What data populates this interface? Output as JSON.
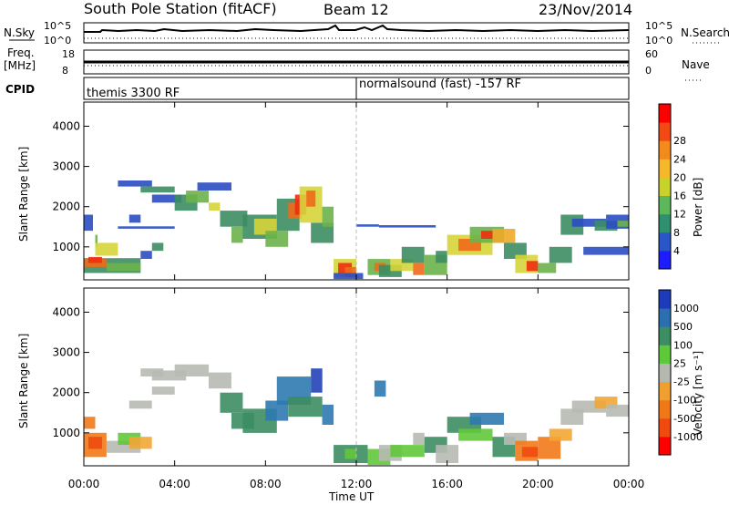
{
  "header": {
    "title": "South Pole Station (fitACF)",
    "beam": "Beam 12",
    "date": "23/Nov/2014"
  },
  "strips": {
    "nsky_label": "N.Sky",
    "nsky_ticks": [
      "10^5",
      "10^0"
    ],
    "nsearch_label": "N.Search",
    "nsearch_ticks": [
      "10^5",
      "10^0"
    ],
    "freq_label": "Freq.",
    "freq_unit": "[MHz]",
    "freq_ticks": [
      "18",
      "8"
    ],
    "nave_label": "Nave",
    "nave_ticks": [
      "60",
      "0"
    ],
    "cpid_label": "CPID",
    "cpid_segments": [
      {
        "label": "themis 3300 RF"
      },
      {
        "label": "normalsound (fast) -157 RF"
      }
    ]
  },
  "chart_data": [
    {
      "type": "heatmap",
      "panel": "power",
      "title": "",
      "xlabel": "",
      "ylabel": "Slant Range [km]",
      "xlim": [
        "00:00",
        "24:00"
      ],
      "ylim": [
        180,
        4600
      ],
      "x_ticks": [
        "00:00",
        "04:00",
        "08:00",
        "12:00",
        "16:00",
        "20:00",
        "00:00"
      ],
      "y_ticks": [
        1000,
        2000,
        3000,
        4000
      ],
      "colorbar": {
        "label": "Power [dB]",
        "ticks": [
          "4",
          "8",
          "12",
          "16",
          "20",
          "24",
          "28"
        ],
        "colors": [
          "#1c1cff",
          "#2a56c8",
          "#2f8f6f",
          "#5cb85a",
          "#c8d22a",
          "#f5b82c",
          "#f28a1c",
          "#f24a14",
          "#ff0000"
        ]
      },
      "colormap": {
        "0": "#2a4dc2",
        "1": "#3c8d62",
        "2": "#6bb24a",
        "3": "#d6d43a",
        "4": "#f0a828",
        "5": "#f06a18",
        "6": "#f02e10",
        "7": "#ff1a0a"
      },
      "cells": [
        [
          "00:30",
          "00:36",
          1000,
          1300,
          2
        ],
        [
          "00:00",
          "02:30",
          350,
          720,
          1
        ],
        [
          "00:00",
          "01:00",
          500,
          700,
          5
        ],
        [
          "00:12",
          "00:48",
          600,
          750,
          6
        ],
        [
          "00:30",
          "01:30",
          780,
          1100,
          3
        ],
        [
          "01:00",
          "02:30",
          400,
          600,
          2
        ],
        [
          "00:00",
          "00:24",
          1400,
          1800,
          0
        ],
        [
          "02:00",
          "02:30",
          1600,
          1800,
          0
        ],
        [
          "01:30",
          "04:00",
          1450,
          1510,
          0
        ],
        [
          "01:30",
          "03:00",
          2500,
          2650,
          0
        ],
        [
          "02:30",
          "04:00",
          2350,
          2500,
          1
        ],
        [
          "03:00",
          "04:18",
          2100,
          2300,
          0
        ],
        [
          "04:00",
          "05:00",
          1900,
          2300,
          1
        ],
        [
          "04:30",
          "05:30",
          2100,
          2400,
          2
        ],
        [
          "05:00",
          "06:30",
          2400,
          2600,
          0
        ],
        [
          "05:30",
          "06:00",
          1900,
          2100,
          3
        ],
        [
          "06:00",
          "07:12",
          1500,
          1900,
          1
        ],
        [
          "06:30",
          "07:00",
          1100,
          1500,
          2
        ],
        [
          "07:00",
          "08:30",
          1200,
          1800,
          1
        ],
        [
          "07:30",
          "08:30",
          1300,
          1700,
          3
        ],
        [
          "08:00",
          "09:00",
          1000,
          1400,
          2
        ],
        [
          "08:30",
          "09:30",
          1400,
          2200,
          1
        ],
        [
          "09:00",
          "09:36",
          1700,
          2100,
          5
        ],
        [
          "09:18",
          "09:48",
          1800,
          2300,
          6
        ],
        [
          "09:30",
          "10:30",
          1600,
          2500,
          3
        ],
        [
          "09:48",
          "10:12",
          2000,
          2400,
          5
        ],
        [
          "10:00",
          "11:00",
          1100,
          1600,
          1
        ],
        [
          "10:30",
          "11:00",
          1500,
          2000,
          2
        ],
        [
          "11:00",
          "12:00",
          250,
          700,
          3
        ],
        [
          "11:12",
          "11:48",
          350,
          600,
          6
        ],
        [
          "11:30",
          "12:00",
          250,
          500,
          5
        ],
        [
          "11:00",
          "12:18",
          200,
          350,
          0
        ],
        [
          "12:30",
          "13:30",
          300,
          700,
          2
        ],
        [
          "12:48",
          "13:18",
          400,
          600,
          5
        ],
        [
          "13:00",
          "14:00",
          250,
          550,
          1
        ],
        [
          "13:30",
          "14:30",
          400,
          700,
          3
        ],
        [
          "14:00",
          "15:00",
          600,
          1000,
          1
        ],
        [
          "14:30",
          "15:00",
          300,
          600,
          5
        ],
        [
          "15:00",
          "16:00",
          300,
          800,
          2
        ],
        [
          "15:30",
          "16:00",
          600,
          900,
          1
        ],
        [
          "16:00",
          "18:00",
          800,
          1300,
          3
        ],
        [
          "16:30",
          "17:30",
          900,
          1200,
          5
        ],
        [
          "17:00",
          "18:30",
          1100,
          1500,
          2
        ],
        [
          "17:30",
          "18:00",
          1200,
          1400,
          6
        ],
        [
          "18:00",
          "19:00",
          1100,
          1450,
          4
        ],
        [
          "18:30",
          "19:30",
          700,
          1100,
          1
        ],
        [
          "19:00",
          "20:00",
          350,
          800,
          3
        ],
        [
          "19:30",
          "20:00",
          400,
          650,
          6
        ],
        [
          "20:00",
          "20:48",
          350,
          600,
          2
        ],
        [
          "20:30",
          "21:30",
          600,
          1000,
          1
        ],
        [
          "21:00",
          "22:00",
          1300,
          1800,
          1
        ],
        [
          "21:30",
          "23:00",
          1500,
          1700,
          0
        ],
        [
          "22:30",
          "23:30",
          1400,
          1650,
          1
        ],
        [
          "23:00",
          "24:00",
          1450,
          1800,
          0
        ],
        [
          "23:30",
          "24:00",
          1500,
          1650,
          2
        ],
        [
          "12:00",
          "13:00",
          1500,
          1560,
          0
        ],
        [
          "13:00",
          "15:30",
          1480,
          1540,
          0
        ],
        [
          "22:00",
          "24:00",
          800,
          1000,
          0
        ],
        [
          "02:30",
          "03:00",
          700,
          900,
          0
        ],
        [
          "03:00",
          "03:30",
          900,
          1100,
          1
        ]
      ]
    },
    {
      "type": "heatmap",
      "panel": "velocity",
      "title": "",
      "xlabel": "Time UT",
      "ylabel": "Slant Range [km]",
      "xlim": [
        "00:00",
        "24:00"
      ],
      "ylim": [
        180,
        4600
      ],
      "x_ticks": [
        "00:00",
        "04:00",
        "08:00",
        "12:00",
        "16:00",
        "20:00",
        "00:00"
      ],
      "y_ticks": [
        1000,
        2000,
        3000,
        4000
      ],
      "colorbar": {
        "label": "Velocity [m s⁻¹]",
        "ticks": [
          "1000",
          "500",
          "100",
          "25",
          "-25",
          "-100",
          "-500",
          "-1000"
        ],
        "colors": [
          "#1c3cbc",
          "#2b6fb0",
          "#3c8d62",
          "#5cc83a",
          "#b4b8b0",
          "#f0a030",
          "#f07818",
          "#f04a10",
          "#ff0000"
        ]
      },
      "colormap": {
        "0": "#2342b8",
        "1": "#2e7ab0",
        "2": "#3c8d62",
        "3": "#60c83a",
        "4": "#b7bab2",
        "5": "#f2a634",
        "6": "#f27a1a",
        "7": "#f04a10"
      },
      "cells": [
        [
          "00:00",
          "01:00",
          400,
          1000,
          6
        ],
        [
          "00:12",
          "00:48",
          600,
          900,
          7
        ],
        [
          "00:00",
          "00:30",
          1100,
          1400,
          6
        ],
        [
          "01:00",
          "02:30",
          500,
          800,
          4
        ],
        [
          "01:30",
          "02:30",
          700,
          1000,
          3
        ],
        [
          "02:30",
          "03:30",
          2400,
          2600,
          4
        ],
        [
          "03:00",
          "04:30",
          2300,
          2550,
          4
        ],
        [
          "04:00",
          "05:30",
          2400,
          2700,
          4
        ],
        [
          "05:30",
          "06:30",
          2100,
          2500,
          4
        ],
        [
          "06:00",
          "07:00",
          1500,
          2000,
          2
        ],
        [
          "06:30",
          "07:30",
          1100,
          1500,
          2
        ],
        [
          "07:00",
          "08:30",
          1000,
          1600,
          2
        ],
        [
          "08:00",
          "09:00",
          1300,
          1800,
          1
        ],
        [
          "08:30",
          "10:00",
          1700,
          2400,
          1
        ],
        [
          "09:00",
          "10:30",
          1400,
          1900,
          2
        ],
        [
          "10:00",
          "10:30",
          2000,
          2600,
          0
        ],
        [
          "10:30",
          "11:00",
          1200,
          1700,
          1
        ],
        [
          "11:00",
          "12:30",
          250,
          700,
          2
        ],
        [
          "11:30",
          "12:00",
          350,
          600,
          3
        ],
        [
          "12:30",
          "13:30",
          200,
          600,
          3
        ],
        [
          "12:48",
          "13:18",
          1900,
          2300,
          1
        ],
        [
          "13:00",
          "14:00",
          300,
          700,
          4
        ],
        [
          "13:30",
          "15:00",
          400,
          700,
          3
        ],
        [
          "14:30",
          "15:00",
          700,
          1000,
          4
        ],
        [
          "15:00",
          "16:00",
          500,
          900,
          2
        ],
        [
          "15:30",
          "16:30",
          250,
          700,
          4
        ],
        [
          "16:00",
          "17:30",
          1000,
          1400,
          2
        ],
        [
          "16:30",
          "18:00",
          800,
          1100,
          3
        ],
        [
          "17:00",
          "18:30",
          1200,
          1500,
          1
        ],
        [
          "18:00",
          "19:00",
          400,
          900,
          2
        ],
        [
          "18:30",
          "19:30",
          700,
          1000,
          4
        ],
        [
          "19:00",
          "20:00",
          300,
          800,
          6
        ],
        [
          "19:18",
          "20:00",
          400,
          650,
          7
        ],
        [
          "20:00",
          "21:00",
          350,
          900,
          6
        ],
        [
          "20:30",
          "21:30",
          800,
          1100,
          5
        ],
        [
          "21:00",
          "22:00",
          1200,
          1600,
          4
        ],
        [
          "21:30",
          "23:00",
          1500,
          1800,
          4
        ],
        [
          "22:30",
          "23:30",
          1600,
          1900,
          5
        ],
        [
          "23:00",
          "24:00",
          1400,
          1700,
          4
        ],
        [
          "02:00",
          "03:00",
          1600,
          1800,
          4
        ],
        [
          "03:00",
          "04:00",
          1950,
          2150,
          4
        ],
        [
          "02:00",
          "03:00",
          600,
          900,
          5
        ]
      ]
    }
  ]
}
